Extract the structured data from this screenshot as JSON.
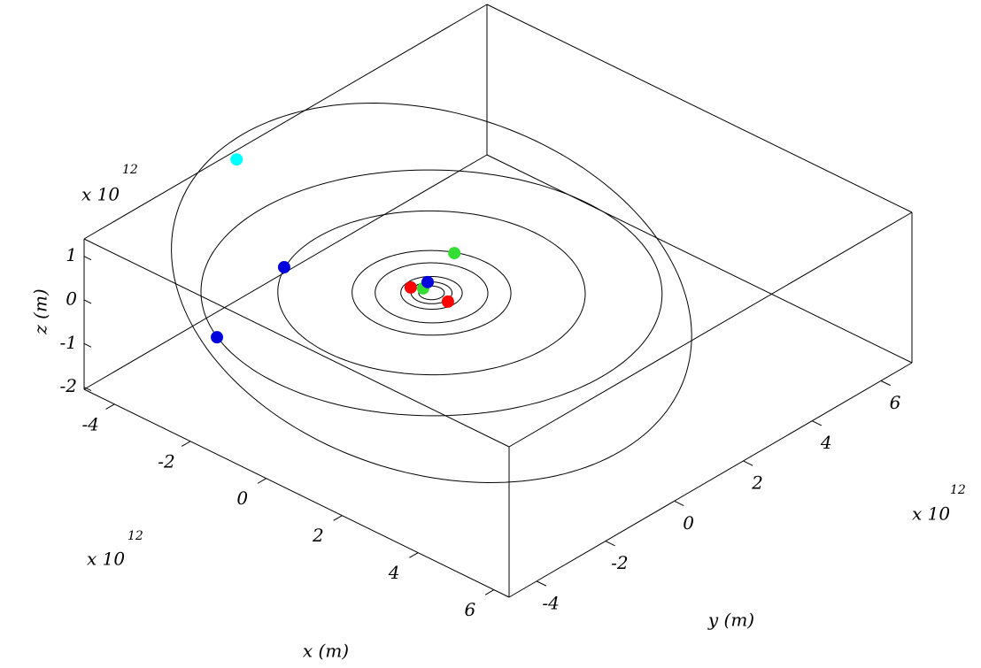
{
  "chart_data": {
    "type": "scatter3d",
    "x_label": "x (m)",
    "y_label": "y (m)",
    "z_label": "z (m)",
    "x_multiplier": {
      "base": "x 10",
      "power": "12"
    },
    "y_multiplier": {
      "base": "x 10",
      "power": "12"
    },
    "z_multiplier": {
      "base": "x 10",
      "power": "12"
    },
    "xlim": [
      -4.8,
      6.4
    ],
    "ylim": [
      -4.8,
      6.9
    ],
    "zlim": [
      -2.05,
      1.4
    ],
    "xticks": [
      -4,
      -2,
      0,
      2,
      4,
      6
    ],
    "yticks": [
      -4,
      -2,
      0,
      2,
      4,
      6
    ],
    "zticks": [
      -2,
      -1,
      0,
      1
    ],
    "orbits": [
      {
        "radius": 0.25
      },
      {
        "radius": 0.4
      },
      {
        "radius": 0.6
      },
      {
        "radius": 1.1
      },
      {
        "radius": 1.55
      },
      {
        "radius": 3.0
      },
      {
        "radius": 4.5
      },
      {
        "radius": 5.2,
        "inclination": 17
      }
    ],
    "series": [
      {
        "color": "#ff0000",
        "x": [
          -0.43,
          0.45
        ],
        "y": [
          -0.13,
          -0.02
        ],
        "z": [
          0,
          0
        ]
      },
      {
        "color": "#33dd33",
        "x": [
          -0.23,
          -0.65
        ],
        "y": [
          0.01,
          1.38
        ],
        "z": [
          0,
          0
        ]
      },
      {
        "color": "#0000dd",
        "x": [
          -0.32,
          -2.74,
          -1.98
        ],
        "y": [
          0.24,
          -1.26,
          -4.05
        ],
        "z": [
          0,
          0,
          0
        ]
      },
      {
        "color": "#00ffff",
        "x": [
          -5.0
        ],
        "y": [
          -0.15
        ],
        "z": [
          1.0
        ]
      }
    ]
  }
}
